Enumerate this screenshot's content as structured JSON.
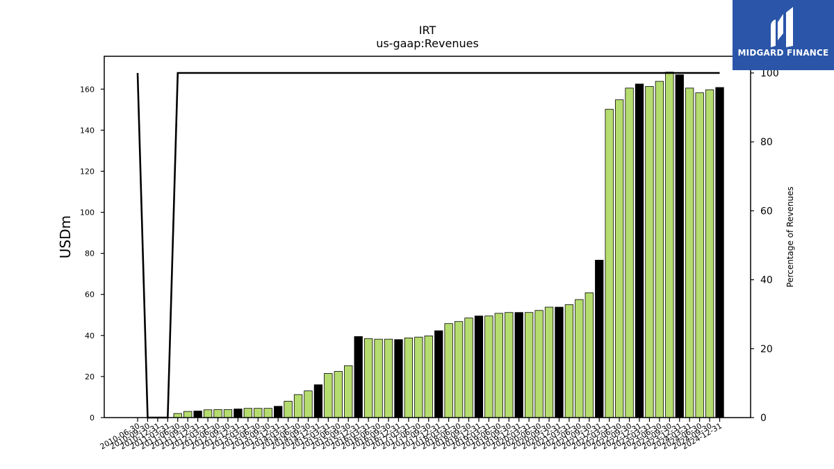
{
  "logo": {
    "text": "MIDGARD FINANCE"
  },
  "chart_data": {
    "type": "bar",
    "title": "IRT",
    "subtitle": "us-gaap:Revenues",
    "ylabel": "USDm",
    "y2label": "Percentage of Revenues",
    "ylim": [
      0,
      176
    ],
    "y2lim": [
      0,
      100
    ],
    "yticks": [
      0,
      20,
      40,
      60,
      80,
      100,
      120,
      140,
      160
    ],
    "y2ticks": [
      0,
      20,
      40,
      60,
      80,
      100
    ],
    "categories": [
      "2010-06-30",
      "2010-09-30",
      "2010-12-31",
      "2011-03-31",
      "2011-06-30",
      "2011-09-30",
      "2011-12-31",
      "2012-03-31",
      "2012-06-30",
      "2012-09-30",
      "2012-12-31",
      "2013-03-31",
      "2013-06-30",
      "2013-09-30",
      "2013-12-31",
      "2014-03-31",
      "2014-06-30",
      "2014-09-30",
      "2014-12-31",
      "2015-03-31",
      "2015-06-30",
      "2015-09-30",
      "2015-12-31",
      "2016-03-31",
      "2016-06-30",
      "2016-09-30",
      "2016-12-31",
      "2017-03-31",
      "2017-06-30",
      "2017-09-30",
      "2017-12-31",
      "2018-03-31",
      "2018-06-30",
      "2018-09-30",
      "2018-12-31",
      "2019-03-31",
      "2019-06-30",
      "2019-09-30",
      "2019-12-31",
      "2020-03-31",
      "2020-06-30",
      "2020-09-30",
      "2020-12-31",
      "2021-03-31",
      "2021-06-30",
      "2021-09-30",
      "2021-12-31",
      "2022-03-31",
      "2022-06-30",
      "2022-09-30",
      "2022-12-31",
      "2023-03-31",
      "2023-06-30",
      "2023-09-30",
      "2023-12-31",
      "2024-03-31",
      "2024-06-30",
      "2024-09-30",
      "2024-12-31"
    ],
    "series": [
      {
        "values": [
          null,
          null,
          null,
          null,
          2.0,
          3.0,
          3.2,
          3.8,
          3.9,
          3.9,
          4.2,
          4.5,
          4.5,
          4.5,
          5.5,
          8.0,
          11.2,
          13.0,
          16.0,
          21.5,
          22.5,
          25.3,
          39.5,
          38.5,
          38.2,
          38.2,
          38.0,
          38.8,
          39.2,
          39.8,
          42.3,
          45.8,
          46.8,
          48.5,
          49.5,
          49.5,
          50.8,
          51.2,
          51.2,
          51.2,
          52.2,
          53.8,
          53.8,
          55.0,
          57.5,
          60.8,
          76.7,
          150.2,
          154.8,
          160.5,
          162.5,
          161.3,
          163.8,
          168.3,
          167.0,
          160.5,
          158.2,
          159.7,
          160.8
        ],
        "highlight": [
          false,
          false,
          false,
          false,
          false,
          false,
          true,
          false,
          false,
          false,
          true,
          false,
          false,
          false,
          true,
          false,
          false,
          false,
          true,
          false,
          false,
          false,
          true,
          false,
          false,
          false,
          true,
          false,
          false,
          false,
          true,
          false,
          false,
          false,
          true,
          false,
          false,
          false,
          true,
          false,
          false,
          false,
          true,
          false,
          false,
          false,
          true,
          false,
          false,
          false,
          true,
          false,
          false,
          false,
          true,
          false,
          false,
          false,
          true
        ]
      },
      {
        "axis": "right",
        "type": "line",
        "values": [
          100,
          0,
          0,
          0,
          100,
          100,
          100,
          100,
          100,
          100,
          100,
          100,
          100,
          100,
          100,
          100,
          100,
          100,
          100,
          100,
          100,
          100,
          100,
          100,
          100,
          100,
          100,
          100,
          100,
          100,
          100,
          100,
          100,
          100,
          100,
          100,
          100,
          100,
          100,
          100,
          100,
          100,
          100,
          100,
          100,
          100,
          100,
          100,
          100,
          100,
          100,
          100,
          100,
          100,
          100,
          100,
          100,
          100,
          100
        ]
      }
    ],
    "colors": {
      "bar": "#b5dc6e",
      "highlight": "#000000",
      "line": "#000000"
    }
  }
}
